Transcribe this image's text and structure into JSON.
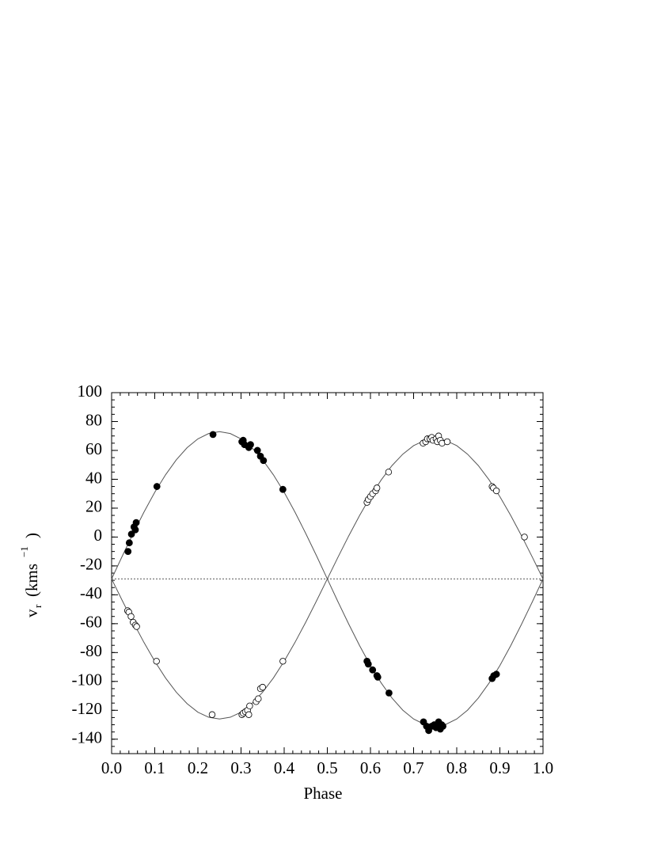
{
  "chart_data": {
    "type": "scatter",
    "xlabel": "Phase",
    "ylabel": {
      "main": "v",
      "sub": "r",
      "unit": "(kms",
      "sup": "−1",
      "close": ")"
    },
    "xlim": [
      0,
      1
    ],
    "ylim": [
      -150,
      100
    ],
    "xticks": [
      {
        "value": 0,
        "label": "0.0"
      },
      {
        "value": 0.1,
        "label": "0.1"
      },
      {
        "value": 0.2,
        "label": "0.2"
      },
      {
        "value": 0.3,
        "label": "0.3"
      },
      {
        "value": 0.4,
        "label": "0.4"
      },
      {
        "value": 0.5,
        "label": "0.5"
      },
      {
        "value": 0.6,
        "label": "0.6"
      },
      {
        "value": 0.7,
        "label": "0.7"
      },
      {
        "value": 0.8,
        "label": "0.8"
      },
      {
        "value": 0.9,
        "label": "0.9"
      },
      {
        "value": 1,
        "label": "1.0"
      }
    ],
    "yticks": [
      -140,
      -120,
      -100,
      -80,
      -60,
      -40,
      -20,
      0,
      20,
      40,
      60,
      80,
      100
    ],
    "xminorticks": [
      0,
      0.02,
      0.04,
      0.06,
      0.08,
      0.1,
      0.12,
      0.14,
      0.16,
      0.18,
      0.2,
      0.22,
      0.24,
      0.26,
      0.28,
      0.3,
      0.32,
      0.34,
      0.36,
      0.38,
      0.4,
      0.42,
      0.44,
      0.46,
      0.48,
      0.5,
      0.52,
      0.54,
      0.56,
      0.58,
      0.6,
      0.62,
      0.64,
      0.66,
      0.68,
      0.7,
      0.72,
      0.74,
      0.76,
      0.78,
      0.8,
      0.82,
      0.84,
      0.86,
      0.88,
      0.9,
      0.92,
      0.94,
      0.96,
      0.98,
      1
    ],
    "yminorticks": [
      -150,
      -145,
      -140,
      -135,
      -130,
      -125,
      -120,
      -115,
      -110,
      -105,
      -100,
      -95,
      -90,
      -85,
      -80,
      -75,
      -70,
      -65,
      -60,
      -55,
      -50,
      -45,
      -40,
      -35,
      -30,
      -25,
      -20,
      -15,
      -10,
      -5,
      0,
      5,
      10,
      15,
      20,
      25,
      30,
      35,
      40,
      45,
      50,
      55,
      60,
      65,
      70,
      75,
      80,
      85,
      90,
      95,
      100
    ],
    "hline": -29,
    "curve_x": [
      0,
      0.025,
      0.05,
      0.075,
      0.1,
      0.125,
      0.15,
      0.175,
      0.2,
      0.225,
      0.25,
      0.275,
      0.3,
      0.325,
      0.35,
      0.375,
      0.4,
      0.425,
      0.45,
      0.475,
      0.5,
      0.525,
      0.55,
      0.575,
      0.6,
      0.625,
      0.65,
      0.675,
      0.7,
      0.725,
      0.75,
      0.775,
      0.8,
      0.825,
      0.85,
      0.875,
      0.9,
      0.925,
      0.95,
      0.975,
      1
    ],
    "curves": [
      {
        "color": "#555555",
        "values": [
          -29,
          -13.0,
          2.5,
          17.3,
          31.0,
          43.1,
          53.5,
          61.9,
          68.0,
          71.7,
          73,
          71.7,
          68.0,
          61.9,
          53.5,
          43.1,
          31.0,
          17.3,
          2.5,
          -13.0,
          -29,
          -45.0,
          -60.5,
          -75.3,
          -89.0,
          -101.1,
          -111.5,
          -119.9,
          -126.0,
          -129.7,
          -131,
          -129.7,
          -126.0,
          -119.9,
          -111.5,
          -101.1,
          -89.0,
          -75.3,
          -60.5,
          -45.0,
          -29
        ]
      },
      {
        "color": "#555555",
        "values": [
          -29,
          -44.2,
          -59.0,
          -73.0,
          -86.0,
          -97.6,
          -107.5,
          -115.4,
          -121.3,
          -124.8,
          -126,
          -124.8,
          -121.3,
          -115.4,
          -107.5,
          -97.6,
          -86.0,
          -73.0,
          -59.0,
          -44.2,
          -29,
          -13.8,
          1.0,
          15.0,
          28.0,
          39.6,
          49.5,
          57.4,
          63.3,
          66.8,
          68,
          66.8,
          63.3,
          57.4,
          49.5,
          39.6,
          28.0,
          15.0,
          1.0,
          -13.8,
          -29
        ]
      }
    ],
    "series": [
      {
        "marker": "filled",
        "color": "#000000",
        "x": [
          0.038,
          0.041,
          0.046,
          0.052,
          0.055,
          0.057,
          0.105,
          0.235,
          0.302,
          0.305,
          0.308,
          0.318,
          0.322,
          0.338,
          0.345,
          0.352,
          0.397,
          0.592,
          0.595,
          0.605,
          0.615,
          0.617,
          0.643,
          0.723,
          0.73,
          0.735,
          0.742,
          0.748,
          0.752,
          0.756,
          0.758,
          0.762,
          0.765,
          0.768,
          0.882,
          0.886,
          0.892
        ],
        "values": [
          -10,
          -4,
          2,
          7,
          5,
          10,
          35,
          71,
          66,
          67,
          64,
          62,
          64,
          60,
          56,
          53,
          33,
          -86,
          -88,
          -92,
          -96,
          -97,
          -108,
          -128,
          -131,
          -134,
          -131,
          -130,
          -132,
          -131,
          -128,
          -133,
          -130,
          -131,
          -98,
          -96,
          -95
        ]
      },
      {
        "marker": "open",
        "color": "#000000",
        "x": [
          0.037,
          0.04,
          0.045,
          0.05,
          0.055,
          0.058,
          0.104,
          0.233,
          0.302,
          0.305,
          0.31,
          0.315,
          0.32,
          0.318,
          0.335,
          0.34,
          0.345,
          0.35,
          0.397,
          0.592,
          0.595,
          0.6,
          0.605,
          0.612,
          0.615,
          0.642,
          0.722,
          0.728,
          0.732,
          0.738,
          0.742,
          0.745,
          0.752,
          0.755,
          0.758,
          0.762,
          0.766,
          0.778,
          0.882,
          0.885,
          0.892,
          0.957
        ],
        "values": [
          -51,
          -52,
          -55,
          -59,
          -61,
          -62,
          -86,
          -123,
          -123,
          -122,
          -121,
          -120,
          -117,
          -123,
          -114,
          -112,
          -105,
          -104,
          -86,
          24,
          26,
          28,
          30,
          32,
          34,
          45,
          65,
          66,
          68,
          68,
          69,
          67,
          68,
          66,
          70,
          67,
          65,
          66,
          35,
          34,
          32,
          0
        ]
      }
    ]
  }
}
